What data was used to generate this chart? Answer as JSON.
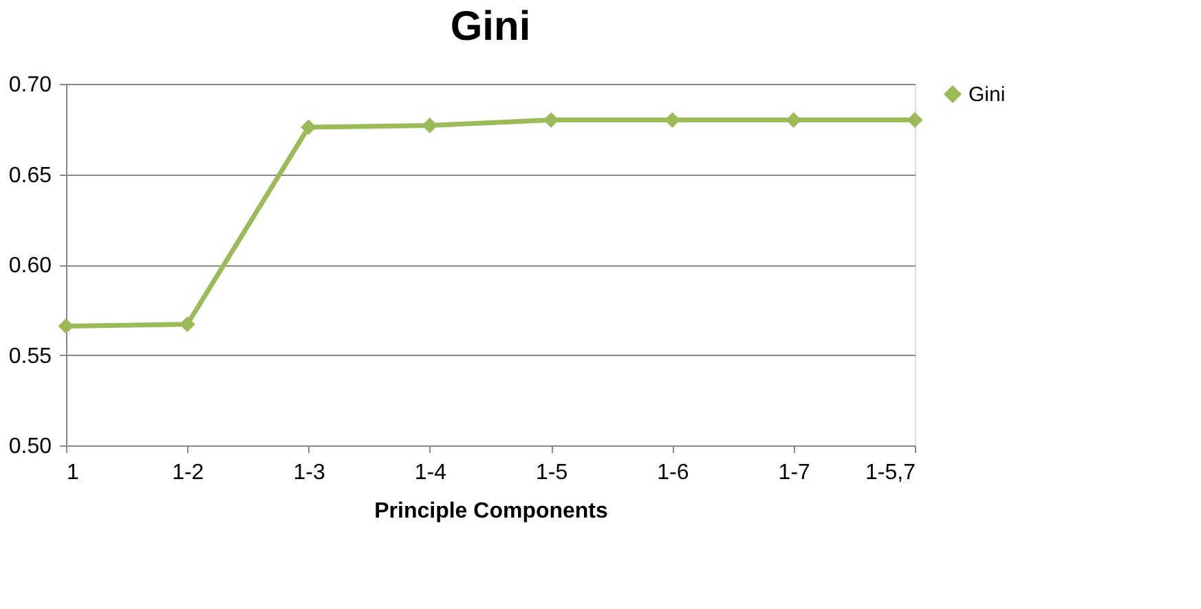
{
  "chart_data": {
    "type": "line",
    "title": "Gini",
    "xlabel": "Principle Components",
    "categories": [
      "1",
      "1-2",
      "1-3",
      "1-4",
      "1-5",
      "1-6",
      "1-7",
      "1-5,7"
    ],
    "series": [
      {
        "name": "Gini",
        "color": "#9bbb59",
        "values": [
          0.566,
          0.567,
          0.676,
          0.677,
          0.68,
          0.68,
          0.68,
          0.68
        ]
      }
    ],
    "ylim": [
      0.5,
      0.7
    ],
    "yticks": [
      {
        "value": 0.5,
        "label": "0.50"
      },
      {
        "value": 0.55,
        "label": "0.55"
      },
      {
        "value": 0.6,
        "label": "0.60"
      },
      {
        "value": 0.65,
        "label": "0.65"
      },
      {
        "value": 0.7,
        "label": "0.70"
      }
    ],
    "grid": "y",
    "legend": "right",
    "marker": "diamond",
    "line_style": "solid"
  }
}
